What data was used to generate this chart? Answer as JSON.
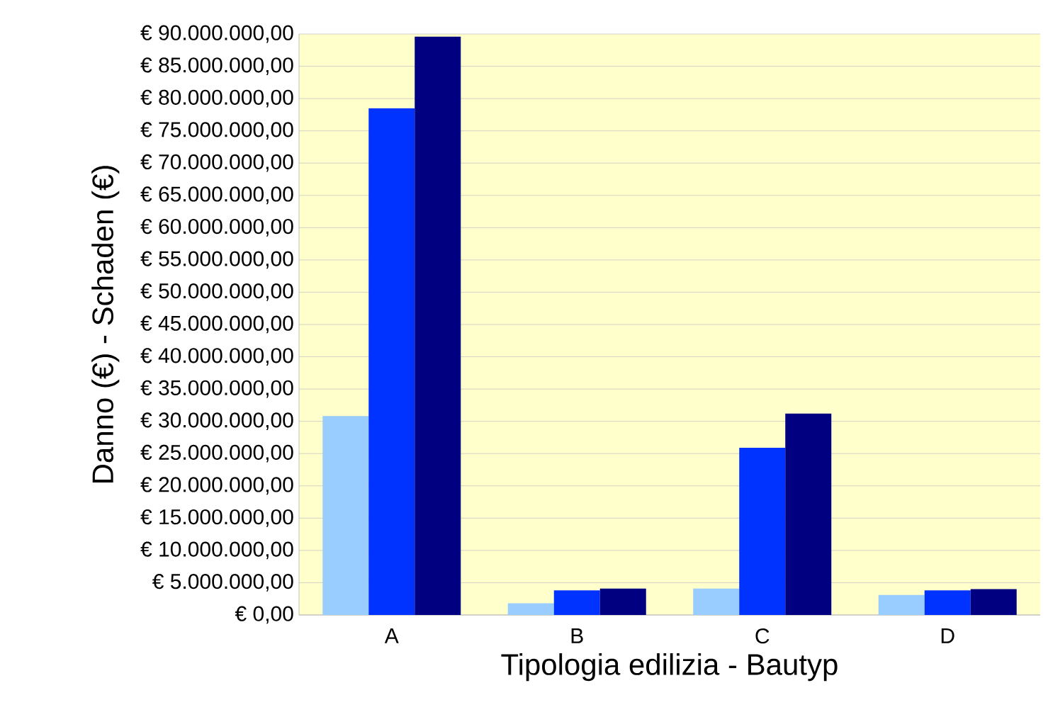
{
  "chart_data": {
    "type": "bar",
    "xlabel": "Tipologia edilizia - Bautyp",
    "ylabel": "Danno (€) - Schaden (€)",
    "categories": [
      "A",
      "B",
      "C",
      "D"
    ],
    "series": [
      {
        "color": "#99ccff",
        "values": [
          30800000,
          1800000,
          4100000,
          3100000
        ]
      },
      {
        "color": "#0033ff",
        "values": [
          78500000,
          3800000,
          25900000,
          3800000
        ]
      },
      {
        "color": "#000080",
        "values": [
          89600000,
          4100000,
          31200000,
          4000000
        ]
      }
    ],
    "ylim": [
      0,
      90000000
    ],
    "yticks": [
      {
        "value": 0,
        "label": "€ 0,00"
      },
      {
        "value": 5000000,
        "label": "€ 5.000.000,00"
      },
      {
        "value": 10000000,
        "label": "€ 10.000.000,00"
      },
      {
        "value": 15000000,
        "label": "€ 15.000.000,00"
      },
      {
        "value": 20000000,
        "label": "€ 20.000.000,00"
      },
      {
        "value": 25000000,
        "label": "€ 25.000.000,00"
      },
      {
        "value": 30000000,
        "label": "€ 30.000.000,00"
      },
      {
        "value": 35000000,
        "label": "€ 35.000.000,00"
      },
      {
        "value": 40000000,
        "label": "€ 40.000.000,00"
      },
      {
        "value": 45000000,
        "label": "€ 45.000.000,00"
      },
      {
        "value": 50000000,
        "label": "€ 50.000.000,00"
      },
      {
        "value": 55000000,
        "label": "€ 55.000.000,00"
      },
      {
        "value": 60000000,
        "label": "€ 60.000.000,00"
      },
      {
        "value": 65000000,
        "label": "€ 65.000.000,00"
      },
      {
        "value": 70000000,
        "label": "€ 70.000.000,00"
      },
      {
        "value": 75000000,
        "label": "€ 75.000.000,00"
      },
      {
        "value": 80000000,
        "label": "€ 80.000.000,00"
      },
      {
        "value": 85000000,
        "label": "€ 85.000.000,00"
      },
      {
        "value": 90000000,
        "label": "€ 90.000.000,00"
      }
    ],
    "grid": "y"
  }
}
